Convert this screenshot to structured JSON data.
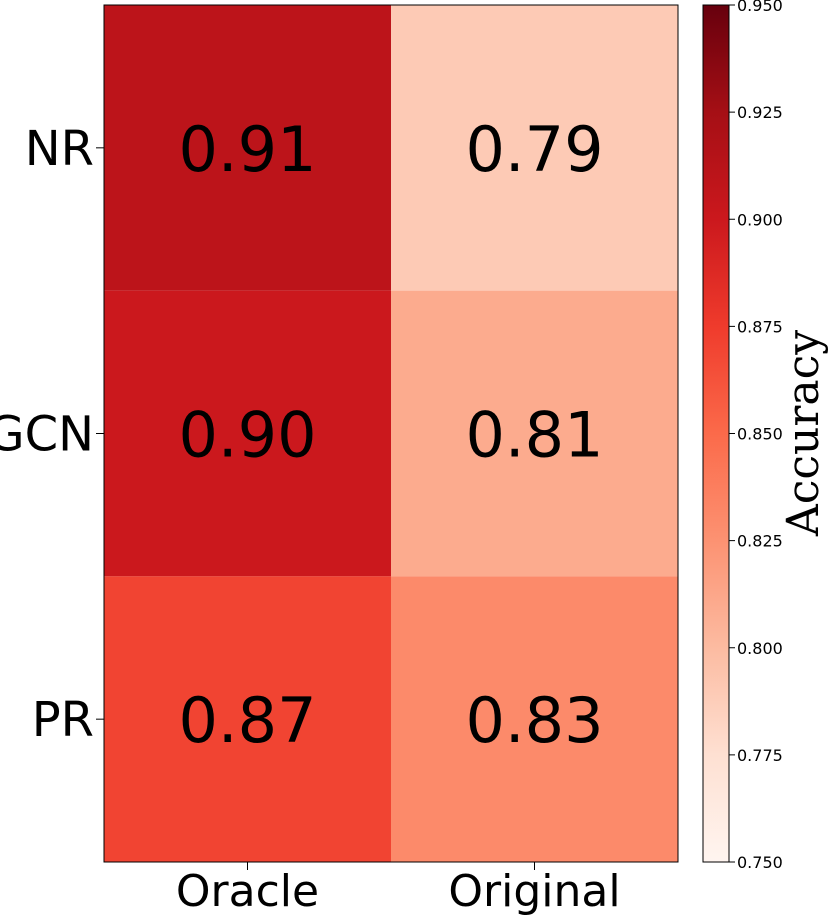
{
  "chart_data": {
    "type": "heatmap",
    "title": "",
    "columns": [
      "Oracle",
      "Original"
    ],
    "rows": [
      "NR",
      "GCN",
      "PR"
    ],
    "values": [
      [
        0.91,
        0.79
      ],
      [
        0.9,
        0.81
      ],
      [
        0.87,
        0.83
      ]
    ],
    "value_labels": [
      [
        "0.91",
        "0.79"
      ],
      [
        "0.90",
        "0.81"
      ],
      [
        "0.87",
        "0.83"
      ]
    ],
    "colorbar": {
      "label": "Accuracy",
      "min": 0.75,
      "max": 0.95,
      "ticks": [
        "0.750",
        "0.775",
        "0.800",
        "0.825",
        "0.850",
        "0.875",
        "0.900",
        "0.925",
        "0.950"
      ],
      "colormap": "Reds"
    }
  }
}
